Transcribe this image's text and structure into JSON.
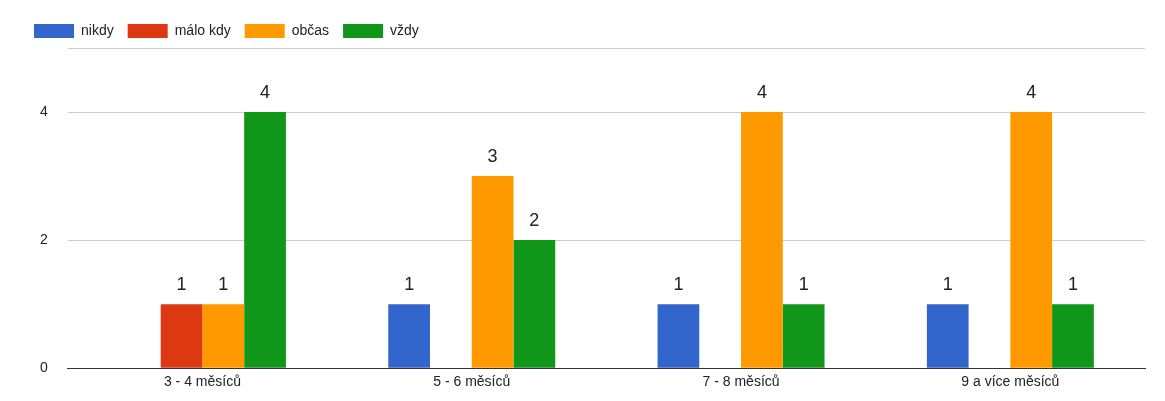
{
  "chart_data": {
    "type": "bar",
    "categories": [
      "3 - 4 měsíců",
      "5 - 6 měsíců",
      "7 - 8 měsíců",
      "9 a více měsíců"
    ],
    "series": [
      {
        "name": "nikdy",
        "color": "#3366cc",
        "values": [
          0,
          1,
          1,
          1
        ],
        "value_labels": [
          null,
          "1",
          "1",
          "1"
        ]
      },
      {
        "name": "málo kdy",
        "color": "#dc3912",
        "values": [
          1,
          0,
          0,
          0
        ],
        "value_labels": [
          "1",
          null,
          null,
          null
        ]
      },
      {
        "name": "občas",
        "color": "#ff9900",
        "values": [
          1,
          3,
          4,
          4
        ],
        "value_labels": [
          "1",
          "3",
          "4",
          "4"
        ]
      },
      {
        "name": "vždy",
        "color": "#109618",
        "values": [
          4,
          2,
          1,
          1
        ],
        "value_labels": [
          "4",
          "2",
          "1",
          "1"
        ]
      }
    ],
    "ylim": [
      0,
      5
    ],
    "yticks": [
      0,
      2,
      4
    ],
    "grid": "y",
    "legend": "top left"
  }
}
